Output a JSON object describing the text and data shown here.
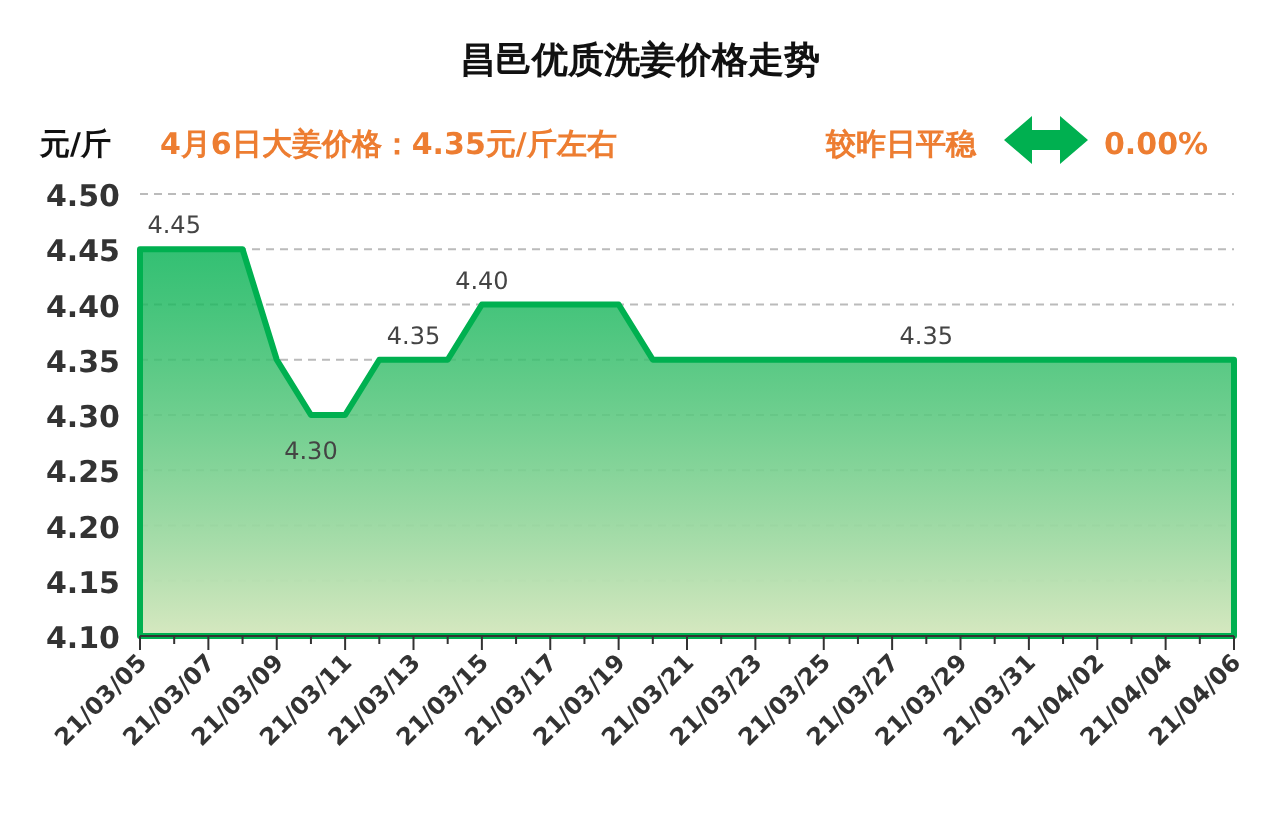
{
  "chart_data": {
    "type": "area",
    "title": "昌邑优质洗姜价格走势",
    "ylabel": "元/斤",
    "annotations": [
      "4月6日大姜价格：4.35元/斤左右",
      "较昨日平稳",
      "0.00%"
    ],
    "categories": [
      "21/03/05",
      null,
      "21/03/07",
      null,
      "21/03/09",
      null,
      "21/03/11",
      null,
      "21/03/13",
      null,
      "21/03/15",
      null,
      "21/03/17",
      null,
      "21/03/19",
      null,
      "21/03/21",
      null,
      "21/03/23",
      null,
      "21/03/25",
      null,
      "21/03/27",
      null,
      "21/03/29",
      null,
      "21/03/31",
      null,
      "21/04/02",
      null,
      "21/04/04",
      null,
      "21/04/06"
    ],
    "series": [
      {
        "color": "#00b050",
        "values": [
          4.45,
          4.45,
          4.45,
          4.45,
          4.35,
          4.3,
          4.3,
          4.35,
          4.35,
          4.35,
          4.4,
          4.4,
          4.4,
          4.4,
          4.4,
          4.35,
          4.35,
          4.35,
          4.35,
          4.35,
          4.35,
          4.35,
          4.35,
          4.35,
          4.35,
          4.35,
          4.35,
          4.35,
          4.35,
          4.35,
          4.35,
          4.35,
          4.35
        ],
        "value_labels": [
          null,
          "4.45",
          null,
          null,
          null,
          "4.30",
          null,
          null,
          "4.35",
          null,
          "4.40",
          null,
          null,
          null,
          null,
          null,
          null,
          null,
          null,
          null,
          null,
          null,
          null,
          "4.35",
          null,
          null,
          null,
          null,
          null,
          null,
          null,
          null,
          null
        ]
      }
    ],
    "ylim": [
      4.1,
      4.5
    ],
    "yticks": [
      {
        "value": 4.1,
        "label": "4.10"
      },
      {
        "value": 4.15,
        "label": "4.15"
      },
      {
        "value": 4.2,
        "label": "4.20"
      },
      {
        "value": 4.25,
        "label": "4.25"
      },
      {
        "value": 4.3,
        "label": "4.30"
      },
      {
        "value": 4.35,
        "label": "4.35"
      },
      {
        "value": 4.4,
        "label": "4.40"
      },
      {
        "value": 4.45,
        "label": "4.45"
      },
      {
        "value": 4.5,
        "label": "4.50"
      }
    ],
    "grid": "y",
    "line_style": "solid"
  }
}
